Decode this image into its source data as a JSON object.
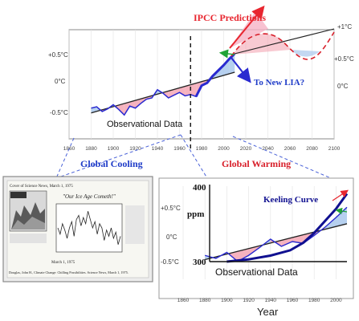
{
  "colors": {
    "warm_fill": "#f4a6b4",
    "cool_fill": "#a9c8ec",
    "series_line": "#2a2ad0",
    "trend_line": "#222222",
    "ipcc_red": "#e8262f",
    "lia_red": "#d81f2a",
    "blue_label": "#1f3cc8",
    "keeling_blue": "#101090",
    "green_arrow": "#21a336"
  },
  "chart_data": [
    {
      "type": "line",
      "title": "",
      "xlabel": "Year",
      "ylabel": "",
      "x_ticks": [
        "1860",
        "1880",
        "1900",
        "1920",
        "1940",
        "1960",
        "1980",
        "2000",
        "2020",
        "2040",
        "2060",
        "2080",
        "2100"
      ],
      "y_ticks_left": [
        "+0.5°C",
        "0°C",
        "-0.5°C"
      ],
      "y_ticks_right": [
        "+1°C",
        "+0.5°C",
        "0°C"
      ],
      "xlim": [
        1860,
        2100
      ],
      "ylim": [
        -0.7,
        0.9
      ],
      "series": [
        {
          "x": [
            1880,
            1885,
            1890,
            1895,
            1900,
            1905,
            1910,
            1915,
            1920,
            1925,
            1930,
            1935,
            1940,
            1945,
            1950,
            1955,
            1960,
            1965,
            1970,
            1975,
            1980,
            1985,
            1990,
            1995,
            2000,
            2005,
            2010
          ],
          "values": [
            -0.25,
            -0.23,
            -0.3,
            -0.26,
            -0.2,
            -0.27,
            -0.35,
            -0.22,
            -0.25,
            -0.18,
            -0.12,
            -0.1,
            0.02,
            -0.03,
            -0.1,
            -0.06,
            -0.02,
            -0.07,
            -0.05,
            -0.08,
            0.08,
            0.12,
            0.22,
            0.3,
            0.38,
            0.47,
            0.55
          ]
        }
      ],
      "annotations": {
        "observational_data": "Observational Data",
        "ipcc_predictions": "IPCC Predictions",
        "new_lia": "To New LIA?",
        "divider_year": 1970
      }
    },
    {
      "type": "line",
      "title": "",
      "xlabel": "Year",
      "ylabel": "ppm",
      "x_ticks": [
        "1860",
        "1880",
        "1900",
        "1920",
        "1940",
        "1960",
        "1980",
        "2000"
      ],
      "y_ticks_left": [
        "+0.5°C",
        "0°C",
        "-0.5°C"
      ],
      "co2_ticks": [
        "400",
        "300"
      ],
      "xlim": [
        1860,
        2010
      ],
      "ylim": [
        -0.7,
        0.9
      ],
      "co2_range": [
        300,
        400
      ],
      "keeling": {
        "x": [
          1900,
          1920,
          1940,
          1958,
          1970,
          1980,
          1990,
          2000,
          2010
        ],
        "ppm": [
          300,
          303,
          308,
          315,
          325,
          338,
          354,
          370,
          390
        ]
      },
      "series": [
        {
          "x": [
            1880,
            1890,
            1900,
            1910,
            1920,
            1930,
            1940,
            1950,
            1960,
            1970,
            1980,
            1990,
            2000,
            2010
          ],
          "values": [
            -0.25,
            -0.3,
            -0.2,
            -0.35,
            -0.25,
            -0.12,
            0.02,
            -0.1,
            -0.02,
            -0.05,
            0.08,
            0.22,
            0.38,
            0.55
          ]
        }
      ],
      "annotations": {
        "keeling_curve": "Keeling Curve",
        "observational_data": "Observational Data"
      }
    }
  ],
  "labels": {
    "global_cooling": "Global Cooling",
    "global_warming": "Global Warming",
    "clipping_header": "Cover of Science News, March 1, 1975",
    "clipping_title": "\"Our Ice Age Cometh!\"",
    "clipping_footer": "Douglas, John H., Climate Change: Chilling Possibilities. Science News, March 1, 1975.",
    "clipping_date": "March 1, 1975"
  }
}
